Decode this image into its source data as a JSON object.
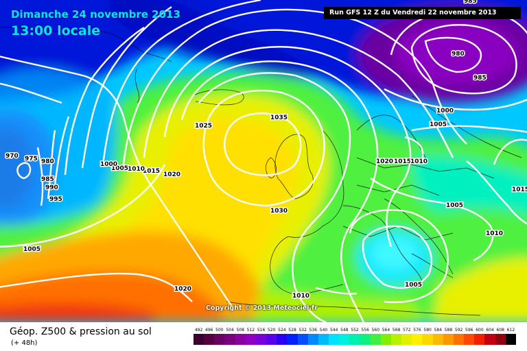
{
  "header": {
    "date": "Dimanche 24 novembre 2013",
    "time": "13:00 locale",
    "run": "Run GFS 12 Z du Vendredi 22 novembre 2013"
  },
  "copyright": "Copyright © 2013 Meteociel.fr",
  "footer": {
    "product": "Géop. Z500 & pression au sol",
    "forecast_hour": "(+ 48h)"
  },
  "legend": {
    "values": [
      "492",
      "496",
      "500",
      "504",
      "508",
      "512",
      "516",
      "520",
      "524",
      "528",
      "532",
      "536",
      "540",
      "544",
      "548",
      "552",
      "556",
      "560",
      "564",
      "568",
      "572",
      "576",
      "580",
      "584",
      "588",
      "592",
      "596",
      "600",
      "604",
      "608",
      "612"
    ],
    "colors": [
      "#3a0030",
      "#55003f",
      "#6a0060",
      "#7a0080",
      "#8a00a0",
      "#8f00c0",
      "#7800d8",
      "#5a00e8",
      "#2a00f0",
      "#0020ff",
      "#0050ff",
      "#0088ff",
      "#00b8ff",
      "#00e0ff",
      "#00f0e0",
      "#00f0b0",
      "#10f080",
      "#40f040",
      "#80f000",
      "#b8f000",
      "#e0f000",
      "#fff000",
      "#ffd800",
      "#ffb800",
      "#ff9800",
      "#ff7000",
      "#ff4800",
      "#f02000",
      "#c00010",
      "#900010",
      "#000000"
    ]
  },
  "isobars": [
    "1030",
    "1035",
    "1025",
    "1020",
    "1015",
    "1010",
    "1005",
    "1000",
    "995",
    "990",
    "985",
    "980",
    "975",
    "970",
    "1030",
    "1020",
    "1015",
    "1010",
    "1005",
    "1000",
    "985",
    "980",
    "1005",
    "1010",
    "1005",
    "1005",
    "1020",
    "1010",
    "1015",
    "985"
  ],
  "colors": {
    "isobar": "#ffffff",
    "coast": "#000000",
    "title": "#00e5ff"
  }
}
